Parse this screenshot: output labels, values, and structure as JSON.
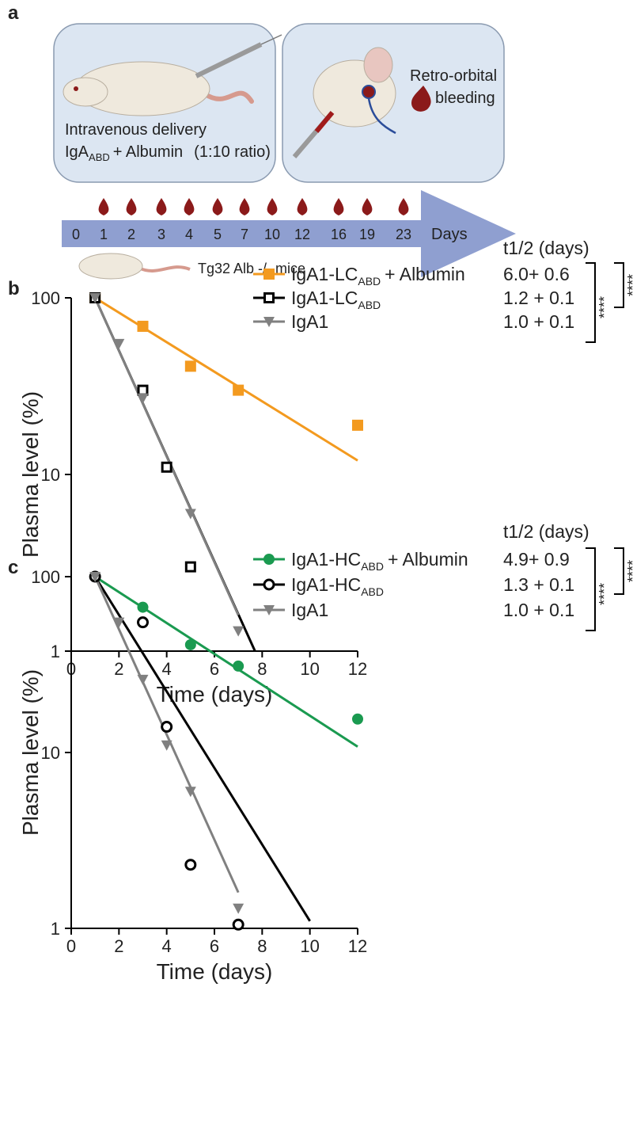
{
  "diagram": {
    "panel_labels": [
      "a",
      "b",
      "c"
    ],
    "left_box": {
      "line1": "Intravenous delivery",
      "line2_main": "IgA",
      "line2_sub": "ABD",
      "line2_suffix": "+ Albumin",
      "line2_ratio": "(1:10 ratio)"
    },
    "right_box": {
      "line1": "Retro-orbital",
      "line2": "bleeding"
    },
    "days": [
      0,
      1,
      2,
      3,
      4,
      5,
      7,
      10,
      12,
      16,
      19,
      23
    ],
    "days_label": "Days",
    "mouse_label": "Tg32 Alb -/- mice"
  },
  "chart_data": [
    {
      "type": "scatter",
      "xlabel": "Time (days)",
      "ylabel": "Plasma level (%)",
      "xlim": [
        0,
        12
      ],
      "xticks": [
        0,
        2,
        4,
        6,
        8,
        10,
        12
      ],
      "ylim": [
        1,
        100
      ],
      "yticks": [
        1,
        10,
        100
      ],
      "log_y": true,
      "legend_title": "t1/2 (days)",
      "significance": [
        "****",
        "****"
      ],
      "series": [
        {
          "name": "IgA1-LC",
          "name_sub": "ABD",
          "name_suffix": "+ Albumin",
          "half_life": "6.0+ 0.6",
          "color": "#f39a1f",
          "marker": "square",
          "x": [
            1,
            3,
            5,
            7,
            12
          ],
          "values": [
            100,
            69,
            41,
            30,
            19
          ],
          "fit": {
            "x": [
              1,
              12
            ],
            "values": [
              100,
              12
            ]
          }
        },
        {
          "name": "IgA1-LC",
          "name_sub": "ABD",
          "half_life": "1.2 + 0.1",
          "color": "#000000",
          "marker": "open-square",
          "x": [
            1,
            3,
            4,
            5
          ],
          "values": [
            100,
            30,
            11,
            3
          ],
          "fit": {
            "x": [
              1,
              7.7
            ],
            "values": [
              100,
              1
            ]
          }
        },
        {
          "name": "IgA1",
          "half_life": "1.0 + 0.1",
          "color": "#808080",
          "marker": "triangle-down",
          "x": [
            1,
            2,
            3,
            5,
            7
          ],
          "values": [
            100,
            55,
            27,
            6,
            1.3
          ],
          "fit": {
            "x": [
              1,
              7
            ],
            "values": [
              100,
              1.6
            ]
          }
        }
      ]
    },
    {
      "type": "scatter",
      "xlabel": "Time (days)",
      "ylabel": "Plasma level (%)",
      "xlim": [
        0,
        12
      ],
      "xticks": [
        0,
        2,
        4,
        6,
        8,
        10,
        12
      ],
      "ylim": [
        1,
        100
      ],
      "yticks": [
        1,
        10,
        100
      ],
      "log_y": true,
      "legend_title": "t1/2 (days)",
      "significance": [
        "****",
        "****"
      ],
      "series": [
        {
          "name": "IgA1-HC",
          "name_sub": "ABD",
          "name_suffix": "+ Albumin",
          "half_life": "4.9+ 0.9",
          "color": "#1a9a50",
          "marker": "circle",
          "x": [
            1,
            3,
            5,
            7,
            12
          ],
          "values": [
            100,
            67,
            41,
            31,
            15.5
          ],
          "fit": {
            "x": [
              1,
              12
            ],
            "values": [
              100,
              10.8
            ]
          }
        },
        {
          "name": "IgA1-HC",
          "name_sub": "ABD",
          "half_life": "1.3 + 0.1",
          "color": "#000000",
          "marker": "open-circle",
          "x": [
            1,
            3,
            4,
            5,
            7
          ],
          "values": [
            100,
            55,
            14,
            2.3,
            1.05
          ],
          "fit": {
            "x": [
              1,
              10
            ],
            "values": [
              100,
              1.1
            ]
          }
        },
        {
          "name": "IgA1",
          "half_life": "1.0 + 0.1",
          "color": "#808080",
          "marker": "triangle-down",
          "x": [
            1,
            2,
            3,
            4,
            5,
            7
          ],
          "values": [
            100,
            55,
            26,
            11,
            6,
            1.3
          ],
          "fit": {
            "x": [
              1,
              7
            ],
            "values": [
              100,
              1.6
            ]
          }
        }
      ]
    }
  ]
}
